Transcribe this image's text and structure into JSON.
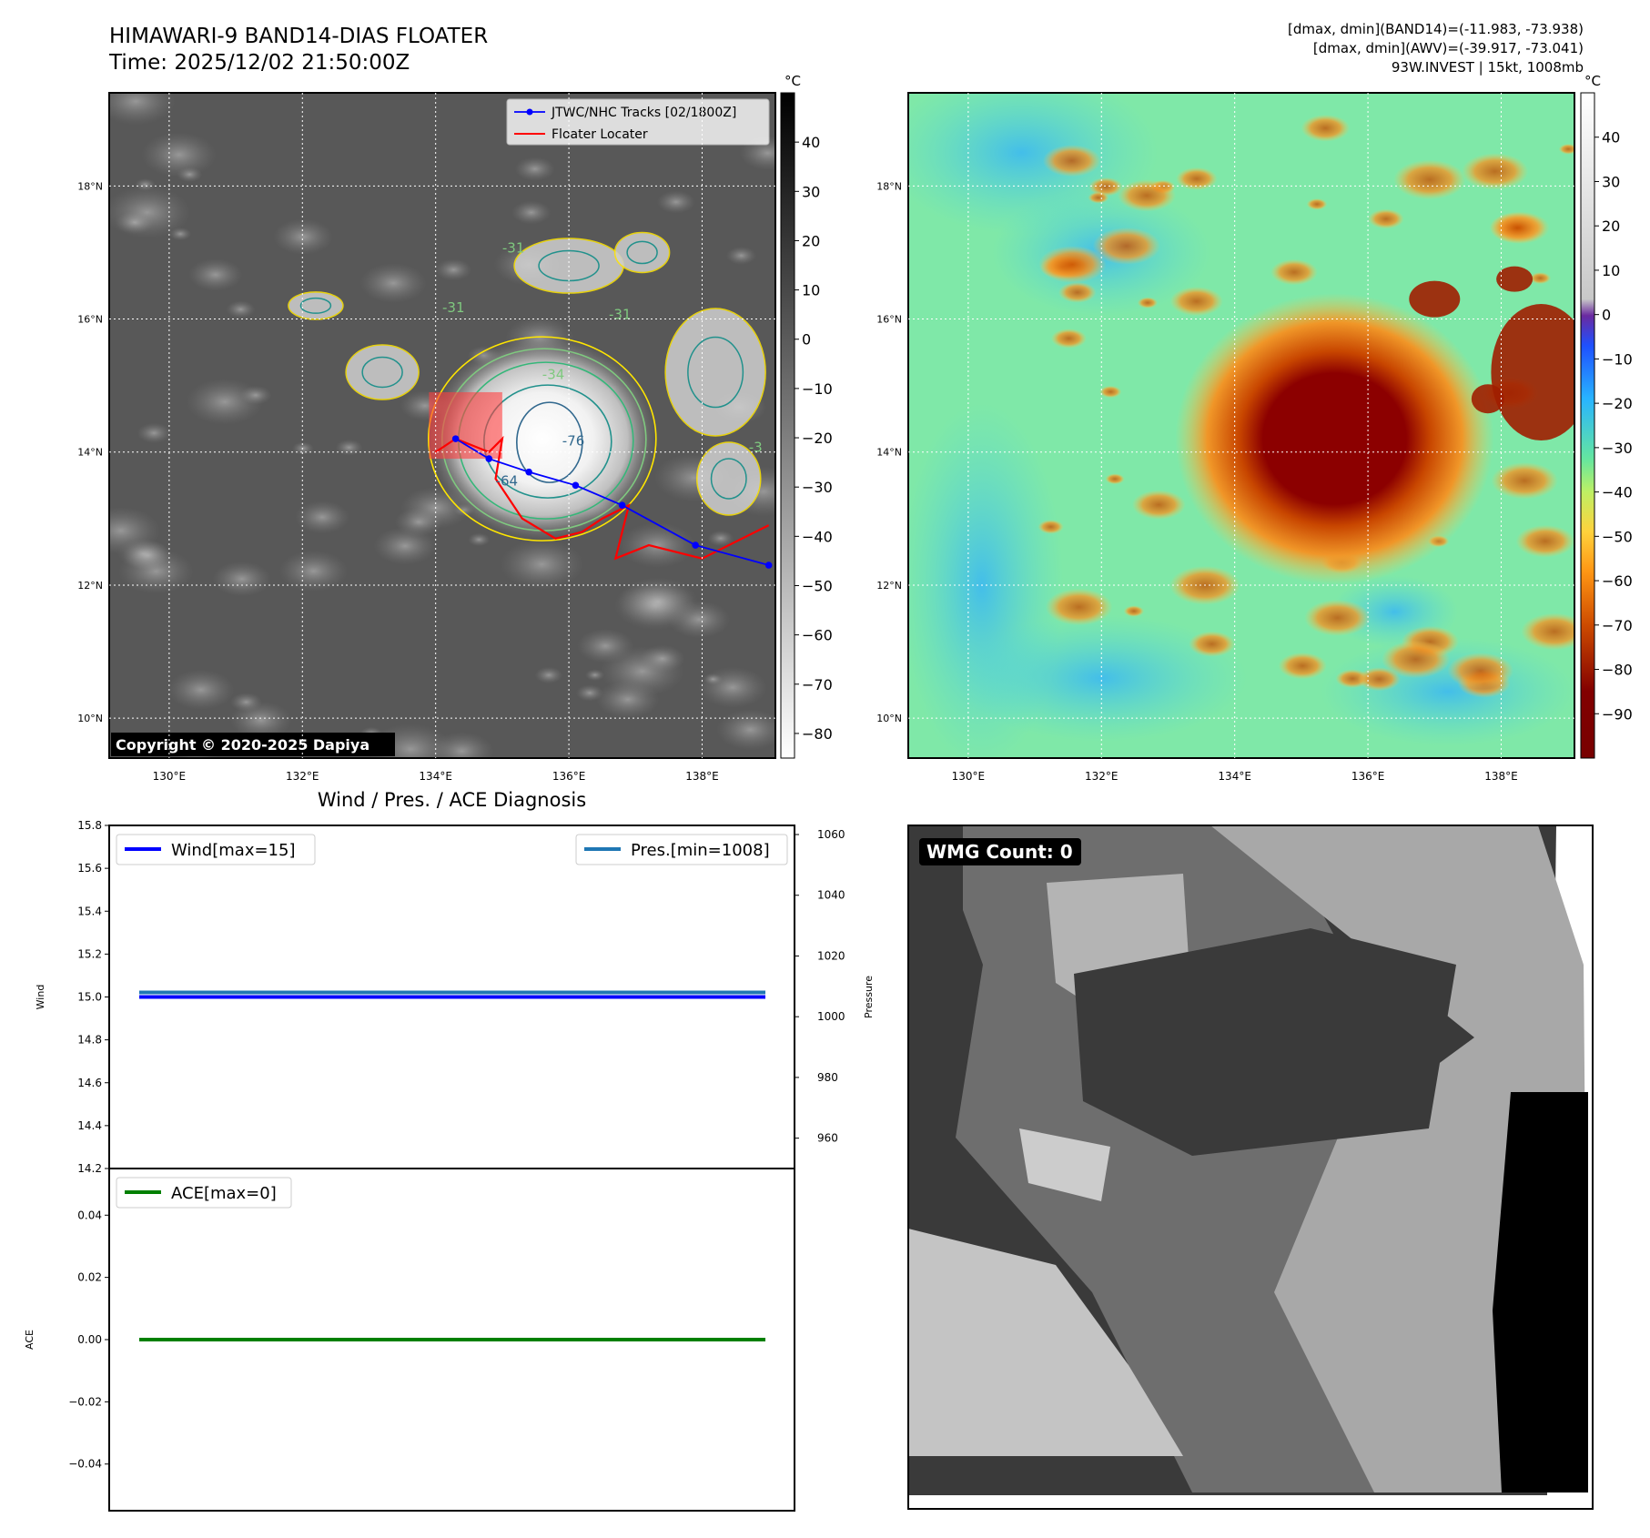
{
  "header": {
    "title": "HIMAWARI-9 BAND14-DIAS FLOATER",
    "time": "Time: 2025/12/02 21:50:00Z",
    "stats_band14": "[dmax, dmin](BAND14)=(-11.983, -73.938)",
    "stats_awv": "[dmax, dmin](AWV)=(-39.917, -73.041)",
    "storm_info": "93W.INVEST | 15kt, 1008mb"
  },
  "copyright": "Copyright © 2020-2025 Dapiya",
  "colors": {
    "wind": "#0000ff",
    "pressure": "#1f77b4",
    "ace": "#008000",
    "track": "#0000ff",
    "floater": "#ff0000"
  },
  "chart_data": [
    {
      "type": "heatmap",
      "panel": "ir-band14",
      "colormap": "grayscale",
      "colorbar_unit": "°C",
      "colorbar_ticks": [
        40,
        30,
        20,
        10,
        0,
        -10,
        -20,
        -30,
        -40,
        -50,
        -60,
        -70,
        -80
      ],
      "xlim": [
        129.1,
        139.1
      ],
      "ylim": [
        9.4,
        19.4
      ],
      "x_ticks": [
        130,
        132,
        134,
        136,
        138
      ],
      "x_tick_labels": [
        "130°E",
        "132°E",
        "134°E",
        "136°E",
        "138°E"
      ],
      "y_ticks": [
        10,
        12,
        14,
        16,
        18
      ],
      "y_tick_labels": [
        "10°N",
        "12°N",
        "14°N",
        "16°N",
        "18°N"
      ],
      "contour_labels": [
        "-76",
        "-64",
        "-34",
        "-31",
        "-31",
        "-31",
        "-3"
      ],
      "legend": [
        "JTWC/NHC Tracks [02/1800Z]",
        "Floater Locater"
      ],
      "track": {
        "lon": [
          134.3,
          134.8,
          135.4,
          136.1,
          136.8,
          137.9,
          139.0
        ],
        "lat": [
          14.2,
          13.9,
          13.7,
          13.5,
          13.2,
          12.6,
          12.3
        ]
      },
      "floater": {
        "lon": [
          134.0,
          134.3,
          134.8,
          135.0,
          134.9,
          135.3,
          135.8,
          136.2,
          136.5,
          136.9,
          136.7,
          137.2,
          138.0,
          139.0
        ],
        "lat": [
          14.0,
          14.2,
          14.0,
          14.2,
          13.6,
          13.0,
          12.7,
          12.8,
          13.0,
          13.2,
          12.4,
          12.6,
          12.4,
          12.9
        ]
      }
    },
    {
      "type": "heatmap",
      "panel": "awv",
      "colormap": "jet-like",
      "colorbar_unit": "°C",
      "colorbar_ticks": [
        40,
        30,
        20,
        10,
        0,
        -10,
        -20,
        -30,
        -40,
        -50,
        -60,
        -70,
        -80,
        -90
      ],
      "xlim": [
        129.1,
        139.1
      ],
      "ylim": [
        9.4,
        19.4
      ],
      "x_ticks": [
        130,
        132,
        134,
        136,
        138
      ],
      "x_tick_labels": [
        "130°E",
        "132°E",
        "134°E",
        "136°E",
        "138°E"
      ],
      "y_ticks": [
        10,
        12,
        14,
        16,
        18
      ],
      "y_tick_labels": [
        "10°N",
        "12°N",
        "14°N",
        "16°N",
        "18°N"
      ]
    },
    {
      "type": "line",
      "panel": "wind-pressure",
      "title": "Wind / Pres. / ACE Diagnosis",
      "ylabel": "Wind",
      "ylabel_right": "Pressure",
      "ylim": [
        14.2,
        15.8
      ],
      "ylim_right": [
        950,
        1063
      ],
      "y_ticks": [
        14.2,
        14.4,
        14.6,
        14.8,
        15.0,
        15.2,
        15.4,
        15.6,
        15.8
      ],
      "y_tick_labels": [
        "14.2",
        "14.4",
        "14.6",
        "14.8",
        "15.0",
        "15.2",
        "15.4",
        "15.6",
        "15.8"
      ],
      "y_ticks_right": [
        960,
        980,
        1000,
        1020,
        1040,
        1060
      ],
      "y_tick_labels_right": [
        "960",
        "980",
        "1000",
        "1020",
        "1040",
        "1060"
      ],
      "series": [
        {
          "name": "Wind[max=15]",
          "x": [
            0,
            1
          ],
          "values": [
            15,
            15
          ]
        },
        {
          "name": "Pres.[min=1008]",
          "x": [
            0,
            1
          ],
          "values": [
            1008,
            1008
          ]
        }
      ]
    },
    {
      "type": "line",
      "panel": "ace",
      "ylabel": "ACE",
      "ylim": [
        -0.055,
        0.055
      ],
      "y_ticks": [
        -0.04,
        -0.02,
        0.0,
        0.02,
        0.04
      ],
      "y_tick_labels": [
        "−0.04",
        "−0.02",
        "0.00",
        "0.02",
        "0.04"
      ],
      "series": [
        {
          "name": "ACE[max=0]",
          "x": [
            0,
            1
          ],
          "values": [
            0,
            0
          ]
        }
      ]
    },
    {
      "type": "heatmap",
      "panel": "wmg",
      "colormap": "grayscale",
      "label": "WMG Count: 0"
    }
  ]
}
